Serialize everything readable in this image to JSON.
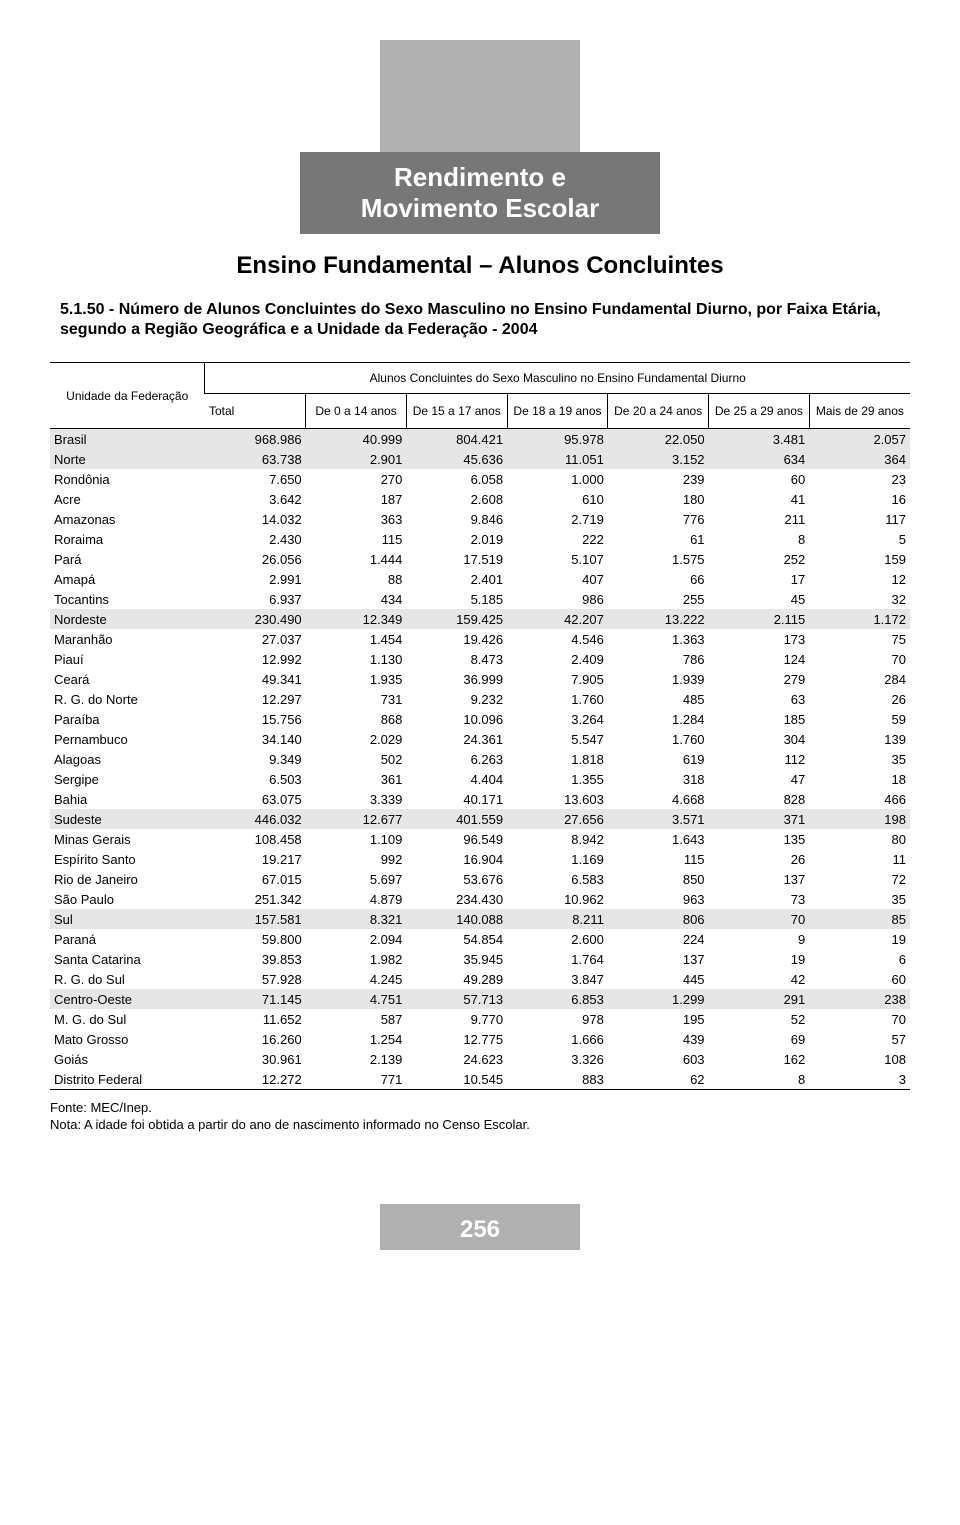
{
  "header": {
    "section_title_line1": "Rendimento e",
    "section_title_line2": "Movimento Escolar",
    "subtitle": "Ensino Fundamental – Alunos Concluintes",
    "caption": "5.1.50 - Número de Alunos Concluintes do Sexo Masculino no Ensino Fundamental Diurno, por Faixa Etária, segundo a Região Geográfica e a Unidade da Federação - 2004"
  },
  "table": {
    "meta_header": "Alunos Concluintes do Sexo Masculino no Ensino Fundamental Diurno",
    "row_header": "Unidade da Federação",
    "columns": [
      "Total",
      "De 0 a 14 anos",
      "De 15 a 17 anos",
      "De 18 a 19 anos",
      "De 20 a 24 anos",
      "De 25 a 29 anos",
      "Mais de 29 anos"
    ],
    "groups": [
      {
        "header": {
          "label": "Brasil",
          "values": [
            "968.986",
            "40.999",
            "804.421",
            "95.978",
            "22.050",
            "3.481",
            "2.057"
          ]
        },
        "rows": []
      },
      {
        "header": {
          "label": "Norte",
          "values": [
            "63.738",
            "2.901",
            "45.636",
            "11.051",
            "3.152",
            "634",
            "364"
          ]
        },
        "rows": [
          {
            "label": "Rondônia",
            "values": [
              "7.650",
              "270",
              "6.058",
              "1.000",
              "239",
              "60",
              "23"
            ]
          },
          {
            "label": "Acre",
            "values": [
              "3.642",
              "187",
              "2.608",
              "610",
              "180",
              "41",
              "16"
            ]
          },
          {
            "label": "Amazonas",
            "values": [
              "14.032",
              "363",
              "9.846",
              "2.719",
              "776",
              "211",
              "117"
            ]
          },
          {
            "label": "Roraima",
            "values": [
              "2.430",
              "115",
              "2.019",
              "222",
              "61",
              "8",
              "5"
            ]
          },
          {
            "label": "Pará",
            "values": [
              "26.056",
              "1.444",
              "17.519",
              "5.107",
              "1.575",
              "252",
              "159"
            ]
          },
          {
            "label": "Amapá",
            "values": [
              "2.991",
              "88",
              "2.401",
              "407",
              "66",
              "17",
              "12"
            ]
          },
          {
            "label": "Tocantins",
            "values": [
              "6.937",
              "434",
              "5.185",
              "986",
              "255",
              "45",
              "32"
            ]
          }
        ]
      },
      {
        "header": {
          "label": "Nordeste",
          "values": [
            "230.490",
            "12.349",
            "159.425",
            "42.207",
            "13.222",
            "2.115",
            "1.172"
          ]
        },
        "rows": [
          {
            "label": "Maranhão",
            "values": [
              "27.037",
              "1.454",
              "19.426",
              "4.546",
              "1.363",
              "173",
              "75"
            ]
          },
          {
            "label": "Piauí",
            "values": [
              "12.992",
              "1.130",
              "8.473",
              "2.409",
              "786",
              "124",
              "70"
            ]
          },
          {
            "label": "Ceará",
            "values": [
              "49.341",
              "1.935",
              "36.999",
              "7.905",
              "1.939",
              "279",
              "284"
            ]
          },
          {
            "label": "R. G. do Norte",
            "values": [
              "12.297",
              "731",
              "9.232",
              "1.760",
              "485",
              "63",
              "26"
            ]
          },
          {
            "label": "Paraíba",
            "values": [
              "15.756",
              "868",
              "10.096",
              "3.264",
              "1.284",
              "185",
              "59"
            ]
          },
          {
            "label": "Pernambuco",
            "values": [
              "34.140",
              "2.029",
              "24.361",
              "5.547",
              "1.760",
              "304",
              "139"
            ]
          },
          {
            "label": "Alagoas",
            "values": [
              "9.349",
              "502",
              "6.263",
              "1.818",
              "619",
              "112",
              "35"
            ]
          },
          {
            "label": "Sergipe",
            "values": [
              "6.503",
              "361",
              "4.404",
              "1.355",
              "318",
              "47",
              "18"
            ]
          },
          {
            "label": "Bahia",
            "values": [
              "63.075",
              "3.339",
              "40.171",
              "13.603",
              "4.668",
              "828",
              "466"
            ]
          }
        ]
      },
      {
        "header": {
          "label": "Sudeste",
          "values": [
            "446.032",
            "12.677",
            "401.559",
            "27.656",
            "3.571",
            "371",
            "198"
          ]
        },
        "rows": [
          {
            "label": "Minas Gerais",
            "values": [
              "108.458",
              "1.109",
              "96.549",
              "8.942",
              "1.643",
              "135",
              "80"
            ]
          },
          {
            "label": "Espírito Santo",
            "values": [
              "19.217",
              "992",
              "16.904",
              "1.169",
              "115",
              "26",
              "11"
            ]
          },
          {
            "label": "Rio de Janeiro",
            "values": [
              "67.015",
              "5.697",
              "53.676",
              "6.583",
              "850",
              "137",
              "72"
            ]
          },
          {
            "label": "São Paulo",
            "values": [
              "251.342",
              "4.879",
              "234.430",
              "10.962",
              "963",
              "73",
              "35"
            ]
          }
        ]
      },
      {
        "header": {
          "label": "Sul",
          "values": [
            "157.581",
            "8.321",
            "140.088",
            "8.211",
            "806",
            "70",
            "85"
          ]
        },
        "rows": [
          {
            "label": "Paraná",
            "values": [
              "59.800",
              "2.094",
              "54.854",
              "2.600",
              "224",
              "9",
              "19"
            ]
          },
          {
            "label": "Santa Catarina",
            "values": [
              "39.853",
              "1.982",
              "35.945",
              "1.764",
              "137",
              "19",
              "6"
            ]
          },
          {
            "label": "R. G. do Sul",
            "values": [
              "57.928",
              "4.245",
              "49.289",
              "3.847",
              "445",
              "42",
              "60"
            ]
          }
        ]
      },
      {
        "header": {
          "label": "Centro-Oeste",
          "values": [
            "71.145",
            "4.751",
            "57.713",
            "6.853",
            "1.299",
            "291",
            "238"
          ]
        },
        "rows": [
          {
            "label": "M. G. do Sul",
            "values": [
              "11.652",
              "587",
              "9.770",
              "978",
              "195",
              "52",
              "70"
            ]
          },
          {
            "label": "Mato Grosso",
            "values": [
              "16.260",
              "1.254",
              "12.775",
              "1.666",
              "439",
              "69",
              "57"
            ]
          },
          {
            "label": "Goiás",
            "values": [
              "30.961",
              "2.139",
              "24.623",
              "3.326",
              "603",
              "162",
              "108"
            ]
          },
          {
            "label": "Distrito Federal",
            "values": [
              "12.272",
              "771",
              "10.545",
              "883",
              "62",
              "8",
              "3"
            ]
          }
        ]
      }
    ]
  },
  "footnote": {
    "source": "Fonte: MEC/Inep.",
    "note": "Nota: A idade foi obtida a partir do ano de nascimento informado no Censo Escolar."
  },
  "page_number": "256"
}
